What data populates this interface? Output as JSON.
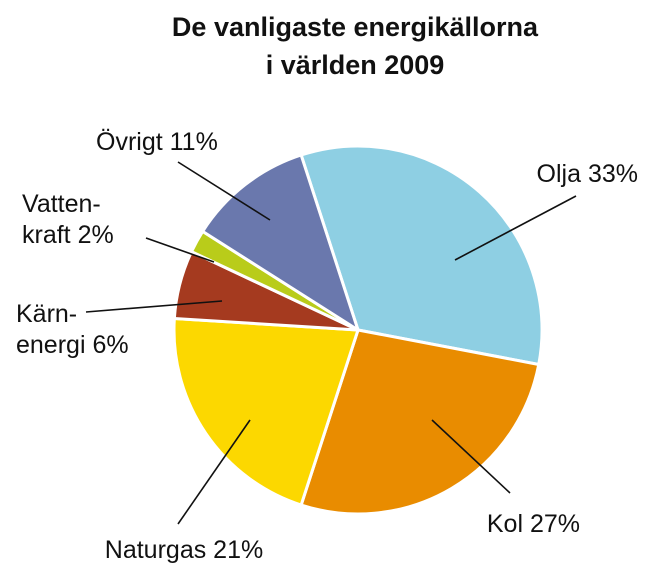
{
  "chart_data": {
    "type": "pie",
    "title_lines": [
      "De vanligaste energikällorna",
      "i världen 2009"
    ],
    "unit": "%",
    "slices": [
      {
        "name": "Olja",
        "value": 33,
        "label_lines": [
          "Olja 33%"
        ],
        "color": "#8ecfe3"
      },
      {
        "name": "Kol",
        "value": 27,
        "label_lines": [
          "Kol 27%"
        ],
        "color": "#e98c00"
      },
      {
        "name": "Naturgas",
        "value": 21,
        "label_lines": [
          "Naturgas 21%"
        ],
        "color": "#fcd800"
      },
      {
        "name": "Kärnenergi",
        "value": 6,
        "label_lines": [
          "Kärn-",
          "energi 6%"
        ],
        "color": "#a53a1f"
      },
      {
        "name": "Vattenkraft",
        "value": 2,
        "label_lines": [
          "Vatten-",
          "kraft 2%"
        ],
        "color": "#b9cc1a"
      },
      {
        "name": "Övrigt",
        "value": 11,
        "label_lines": [
          "Övrigt 11%"
        ],
        "color": "#6a78ad"
      }
    ]
  }
}
